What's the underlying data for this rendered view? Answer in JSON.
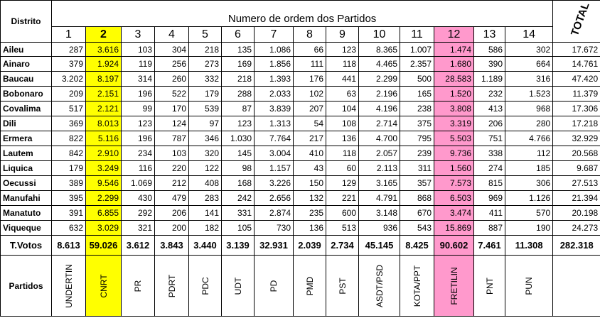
{
  "header": {
    "distrito_label": "Distrito",
    "title": "Numero de ordem dos Partidos",
    "total_label": "TOTAL",
    "party_numbers": [
      "1",
      "2",
      "3",
      "4",
      "5",
      "6",
      "7",
      "8",
      "9",
      "10",
      "11",
      "12",
      "13",
      "14"
    ]
  },
  "rows": [
    {
      "district": "Aileu",
      "values": [
        "287",
        "3.616",
        "103",
        "304",
        "218",
        "135",
        "1.086",
        "66",
        "123",
        "8.365",
        "1.007",
        "1.474",
        "586",
        "302"
      ],
      "total": "17.672"
    },
    {
      "district": "Ainaro",
      "values": [
        "379",
        "1.924",
        "119",
        "256",
        "273",
        "169",
        "1.856",
        "111",
        "118",
        "4.465",
        "2.357",
        "1.680",
        "390",
        "664"
      ],
      "total": "14.761"
    },
    {
      "district": "Baucau",
      "values": [
        "3.202",
        "8.197",
        "314",
        "260",
        "332",
        "218",
        "1.393",
        "176",
        "441",
        "2.299",
        "500",
        "28.583",
        "1.189",
        "316"
      ],
      "total": "47.420"
    },
    {
      "district": "Bobonaro",
      "values": [
        "209",
        "2.151",
        "196",
        "522",
        "179",
        "288",
        "2.033",
        "102",
        "63",
        "2.196",
        "165",
        "1.520",
        "232",
        "1.523"
      ],
      "total": "11.379"
    },
    {
      "district": "Covalima",
      "values": [
        "517",
        "2.121",
        "99",
        "170",
        "539",
        "87",
        "3.839",
        "207",
        "104",
        "4.196",
        "238",
        "3.808",
        "413",
        "968"
      ],
      "total": "17.306"
    },
    {
      "district": "Dili",
      "values": [
        "369",
        "8.013",
        "123",
        "124",
        "97",
        "123",
        "1.313",
        "54",
        "108",
        "2.714",
        "375",
        "3.319",
        "206",
        "280"
      ],
      "total": "17.218"
    },
    {
      "district": "Ermera",
      "values": [
        "822",
        "5.116",
        "196",
        "787",
        "346",
        "1.030",
        "7.764",
        "217",
        "136",
        "4.700",
        "795",
        "5.503",
        "751",
        "4.766"
      ],
      "total": "32.929"
    },
    {
      "district": "Lautem",
      "values": [
        "842",
        "2.910",
        "234",
        "103",
        "320",
        "145",
        "3.004",
        "410",
        "118",
        "2.057",
        "239",
        "9.736",
        "338",
        "112"
      ],
      "total": "20.568"
    },
    {
      "district": "Liquica",
      "values": [
        "179",
        "3.249",
        "116",
        "220",
        "122",
        "98",
        "1.157",
        "43",
        "60",
        "2.113",
        "311",
        "1.560",
        "274",
        "185"
      ],
      "total": "9.687"
    },
    {
      "district": "Oecussi",
      "values": [
        "389",
        "9.546",
        "1.069",
        "212",
        "408",
        "168",
        "3.226",
        "150",
        "129",
        "3.165",
        "357",
        "7.573",
        "815",
        "306"
      ],
      "total": "27.513"
    },
    {
      "district": "Manufahi",
      "values": [
        "395",
        "2.299",
        "430",
        "479",
        "283",
        "242",
        "2.656",
        "132",
        "221",
        "4.791",
        "868",
        "6.503",
        "969",
        "1.126"
      ],
      "total": "21.394"
    },
    {
      "district": "Manatuto",
      "values": [
        "391",
        "6.855",
        "292",
        "206",
        "141",
        "331",
        "2.874",
        "235",
        "600",
        "3.148",
        "670",
        "3.474",
        "411",
        "570"
      ],
      "total": "20.198"
    },
    {
      "district": "Viqueque",
      "values": [
        "632",
        "3.029",
        "321",
        "200",
        "182",
        "105",
        "730",
        "136",
        "513",
        "936",
        "543",
        "15.869",
        "887",
        "190"
      ],
      "total": "24.273"
    }
  ],
  "totals": {
    "label": "T.Votos",
    "values": [
      "8.613",
      "59.026",
      "3.612",
      "3.843",
      "3.440",
      "3.139",
      "32.931",
      "2.039",
      "2.734",
      "45.145",
      "8.425",
      "90.602",
      "7.461",
      "11.308"
    ],
    "total": "282.318"
  },
  "parties": {
    "label": "Partidos",
    "names": [
      "UNDERTIN",
      "CNRT",
      "PR",
      "PDRT",
      "PDC",
      "UDT",
      "PD",
      "PMD",
      "PST",
      "ASDT/PSD",
      "KOTA/PPT",
      "FRETILIN",
      "PNT",
      "PUN"
    ]
  },
  "highlight_colors": {
    "party_2": "#ffff00",
    "party_12": "#ff99cc"
  }
}
